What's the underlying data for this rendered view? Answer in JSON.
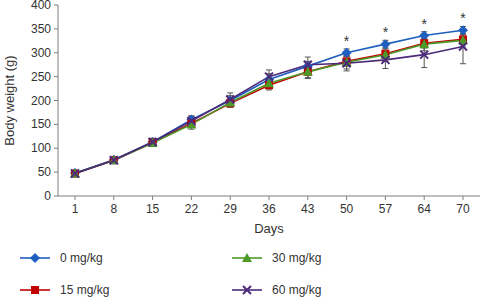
{
  "chart_data": {
    "type": "line",
    "x_label": "Days",
    "y_label": "Body weight (g)",
    "categories": [
      "1",
      "8",
      "15",
      "22",
      "29",
      "36",
      "43",
      "50",
      "57",
      "64",
      "70"
    ],
    "ylim": [
      0,
      400
    ],
    "yticks": [
      0,
      50,
      100,
      150,
      200,
      250,
      300,
      350,
      400
    ],
    "grid": false,
    "legend": "bottom",
    "series": [
      {
        "name": "0 mg/kg",
        "color": "#1f5fbf",
        "marker": "diamond",
        "values": [
          48,
          76,
          113,
          160,
          200,
          244,
          272,
          300,
          318,
          336,
          347
        ],
        "errors": [
          3,
          4,
          6,
          8,
          10,
          12,
          10,
          8,
          8,
          8,
          8
        ]
      },
      {
        "name": "15 mg/kg",
        "color": "#c00000",
        "marker": "square",
        "values": [
          47,
          75,
          112,
          152,
          194,
          232,
          260,
          282,
          298,
          320,
          328
        ],
        "errors": [
          3,
          4,
          6,
          8,
          8,
          10,
          12,
          10,
          10,
          10,
          10
        ]
      },
      {
        "name": "30 mg/kg",
        "color": "#4e9a28",
        "marker": "triangle",
        "values": [
          47,
          75,
          111,
          150,
          196,
          236,
          260,
          280,
          296,
          318,
          326
        ],
        "errors": [
          3,
          4,
          6,
          10,
          10,
          10,
          14,
          14,
          14,
          14,
          14
        ]
      },
      {
        "name": "60 mg/kg",
        "color": "#4b2a7a",
        "marker": "x",
        "values": [
          47,
          75,
          113,
          157,
          202,
          250,
          275,
          278,
          285,
          296,
          313
        ],
        "errors": [
          3,
          4,
          8,
          10,
          14,
          14,
          16,
          16,
          18,
          27,
          36
        ]
      }
    ],
    "annotations": [
      {
        "category": "50",
        "text": "*"
      },
      {
        "category": "57",
        "text": "*"
      },
      {
        "category": "64",
        "text": "*"
      },
      {
        "category": "70",
        "text": "*"
      }
    ]
  }
}
